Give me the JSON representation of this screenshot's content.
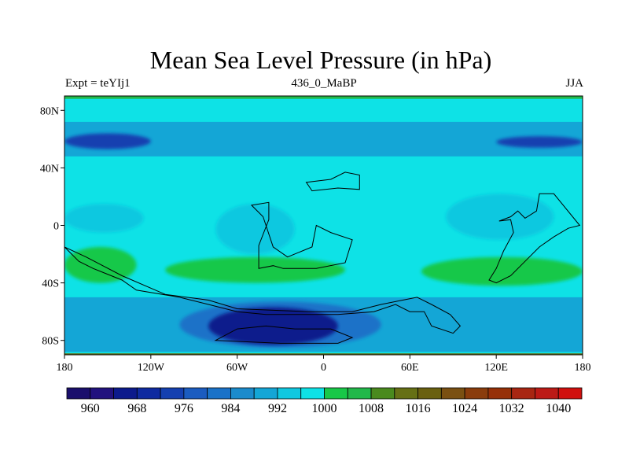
{
  "chart_data": {
    "type": "heatmap",
    "title": "Mean Sea Level Pressure (in hPa)",
    "subtitle_left": "Expt = teYIj1",
    "subtitle_center": "436_0_MaBP",
    "subtitle_right": "JJA",
    "units": "hPa",
    "x_range": [
      -180,
      180
    ],
    "y_range": [
      -90,
      90
    ],
    "x_ticks": [
      {
        "value": -180,
        "label": "180"
      },
      {
        "value": -120,
        "label": "120W"
      },
      {
        "value": -60,
        "label": "60W"
      },
      {
        "value": 0,
        "label": "0"
      },
      {
        "value": 60,
        "label": "60E"
      },
      {
        "value": 120,
        "label": "120E"
      },
      {
        "value": 180,
        "label": "180"
      }
    ],
    "y_ticks": [
      {
        "value": 80,
        "label": "80N"
      },
      {
        "value": 40,
        "label": "40N"
      },
      {
        "value": 0,
        "label": "0"
      },
      {
        "value": -40,
        "label": "40S"
      },
      {
        "value": -80,
        "label": "80S"
      }
    ],
    "colorbar": {
      "levels": [
        956,
        960,
        964,
        968,
        972,
        976,
        980,
        984,
        988,
        992,
        996,
        1000,
        1004,
        1008,
        1012,
        1016,
        1020,
        1024,
        1028,
        1032,
        1036,
        1040,
        1044
      ],
      "colors": [
        "#1a0f6c",
        "#22127e",
        "#0c1a8c",
        "#0f2aa0",
        "#1540b0",
        "#1b5cc0",
        "#1a72c8",
        "#1b8bcc",
        "#14a6d6",
        "#10c8e0",
        "#0ee2e6",
        "#18c848",
        "#22b84a",
        "#4a8a1e",
        "#667015",
        "#6a6010",
        "#7a5012",
        "#8a3c0c",
        "#963008",
        "#a82612",
        "#bc1a16",
        "#d0100e"
      ],
      "labels": [
        {
          "value": 960,
          "label": "960"
        },
        {
          "value": 968,
          "label": "968"
        },
        {
          "value": 976,
          "label": "976"
        },
        {
          "value": 984,
          "label": "984"
        },
        {
          "value": 992,
          "label": "992"
        },
        {
          "value": 1000,
          "label": "1000"
        },
        {
          "value": 1008,
          "label": "1008"
        },
        {
          "value": 1016,
          "label": "1016"
        },
        {
          "value": 1024,
          "label": "1024"
        },
        {
          "value": 1032,
          "label": "1032"
        },
        {
          "value": 1040,
          "label": "1040"
        }
      ]
    },
    "features": [
      {
        "name": "north-polar-cap",
        "lon": [
          -180,
          180
        ],
        "lat": [
          88,
          90
        ],
        "value": 1006
      },
      {
        "name": "southern-edge-strip",
        "lon": [
          -180,
          180
        ],
        "lat": [
          -90,
          -89
        ],
        "value": 1015
      },
      {
        "name": "subpolar-low-band-north",
        "lon": [
          -180,
          180
        ],
        "lat": [
          48,
          72
        ],
        "value": 990
      },
      {
        "name": "subpolar-low-core-west",
        "lon": [
          -180,
          -120
        ],
        "lat": [
          53,
          64
        ],
        "value": 972
      },
      {
        "name": "subpolar-low-core-east",
        "lon": [
          120,
          180
        ],
        "lat": [
          54,
          62
        ],
        "value": 975
      },
      {
        "name": "tropical-low-pacific-west",
        "lon": [
          -180,
          -125
        ],
        "lat": [
          -5,
          15
        ],
        "value": 994
      },
      {
        "name": "tropical-low-central",
        "lon": [
          -75,
          -20
        ],
        "lat": [
          -20,
          15
        ],
        "value": 994
      },
      {
        "name": "tropical-low-east",
        "lon": [
          85,
          160
        ],
        "lat": [
          -10,
          22
        ],
        "value": 994
      },
      {
        "name": "subtropical-high-west",
        "lon": [
          -180,
          -130
        ],
        "lat": [
          -40,
          -15
        ],
        "value": 1003
      },
      {
        "name": "subtropical-high-central",
        "lon": [
          -110,
          15
        ],
        "lat": [
          -40,
          -22
        ],
        "value": 1002
      },
      {
        "name": "subtropical-high-east",
        "lon": [
          68,
          180
        ],
        "lat": [
          -42,
          -22
        ],
        "value": 1002
      },
      {
        "name": "southern-low-band",
        "lon": [
          -180,
          180
        ],
        "lat": [
          -88,
          -50
        ],
        "value": 990
      },
      {
        "name": "southern-deep-low",
        "lon": [
          -100,
          40
        ],
        "lat": [
          -85,
          -53
        ],
        "value": 980
      },
      {
        "name": "southern-deep-low-core",
        "lon": [
          -80,
          10
        ],
        "lat": [
          -83,
          -57
        ],
        "value": 966
      }
    ],
    "landmasses": [
      {
        "name": "north-continent-a",
        "points": [
          [
            -12,
            30
          ],
          [
            5,
            32
          ],
          [
            15,
            37
          ],
          [
            25,
            35
          ],
          [
            25,
            25
          ],
          [
            10,
            26
          ],
          [
            -8,
            24
          ],
          [
            -12,
            30
          ]
        ]
      },
      {
        "name": "central-continent",
        "points": [
          [
            -50,
            14
          ],
          [
            -38,
            16
          ],
          [
            -38,
            4
          ],
          [
            -45,
            -14
          ],
          [
            -45,
            -30
          ],
          [
            -35,
            -28
          ],
          [
            -28,
            -30
          ],
          [
            -5,
            -30
          ],
          [
            15,
            -26
          ],
          [
            20,
            -10
          ],
          [
            5,
            -5
          ],
          [
            -5,
            0
          ],
          [
            -8,
            -15
          ],
          [
            -25,
            -22
          ],
          [
            -35,
            -15
          ],
          [
            -42,
            6
          ],
          [
            -50,
            14
          ]
        ]
      },
      {
        "name": "west-continent",
        "points": [
          [
            -180,
            -15
          ],
          [
            -170,
            -25
          ],
          [
            -160,
            -30
          ],
          [
            -140,
            -38
          ],
          [
            -130,
            -45
          ],
          [
            -100,
            -50
          ],
          [
            -80,
            -55
          ],
          [
            -60,
            -60
          ],
          [
            -40,
            -62
          ],
          [
            10,
            -62
          ],
          [
            35,
            -60
          ],
          [
            50,
            -55
          ],
          [
            60,
            -60
          ],
          [
            70,
            -60
          ],
          [
            75,
            -70
          ],
          [
            90,
            -75
          ],
          [
            95,
            -70
          ],
          [
            88,
            -62
          ],
          [
            75,
            -55
          ],
          [
            65,
            -50
          ],
          [
            55,
            -52
          ],
          [
            40,
            -55
          ],
          [
            20,
            -60
          ],
          [
            -10,
            -60
          ],
          [
            -60,
            -58
          ],
          [
            -80,
            -52
          ],
          [
            -110,
            -48
          ],
          [
            -140,
            -35
          ],
          [
            -165,
            -22
          ],
          [
            -180,
            -15
          ]
        ]
      },
      {
        "name": "east-continent",
        "points": [
          [
            122,
            3
          ],
          [
            130,
            4
          ],
          [
            132,
            -5
          ],
          [
            125,
            -18
          ],
          [
            120,
            -30
          ],
          [
            115,
            -38
          ],
          [
            120,
            -40
          ],
          [
            130,
            -35
          ],
          [
            140,
            -25
          ],
          [
            150,
            -15
          ],
          [
            160,
            -8
          ],
          [
            170,
            -2
          ],
          [
            178,
            0
          ],
          [
            160,
            22
          ],
          [
            150,
            22
          ],
          [
            148,
            10
          ],
          [
            140,
            5
          ],
          [
            135,
            10
          ],
          [
            130,
            6
          ],
          [
            122,
            3
          ]
        ]
      },
      {
        "name": "south-interior",
        "points": [
          [
            -75,
            -80
          ],
          [
            -60,
            -72
          ],
          [
            -40,
            -70
          ],
          [
            -20,
            -72
          ],
          [
            5,
            -72
          ],
          [
            20,
            -78
          ],
          [
            10,
            -82
          ],
          [
            -30,
            -82
          ],
          [
            -75,
            -80
          ]
        ]
      }
    ]
  }
}
